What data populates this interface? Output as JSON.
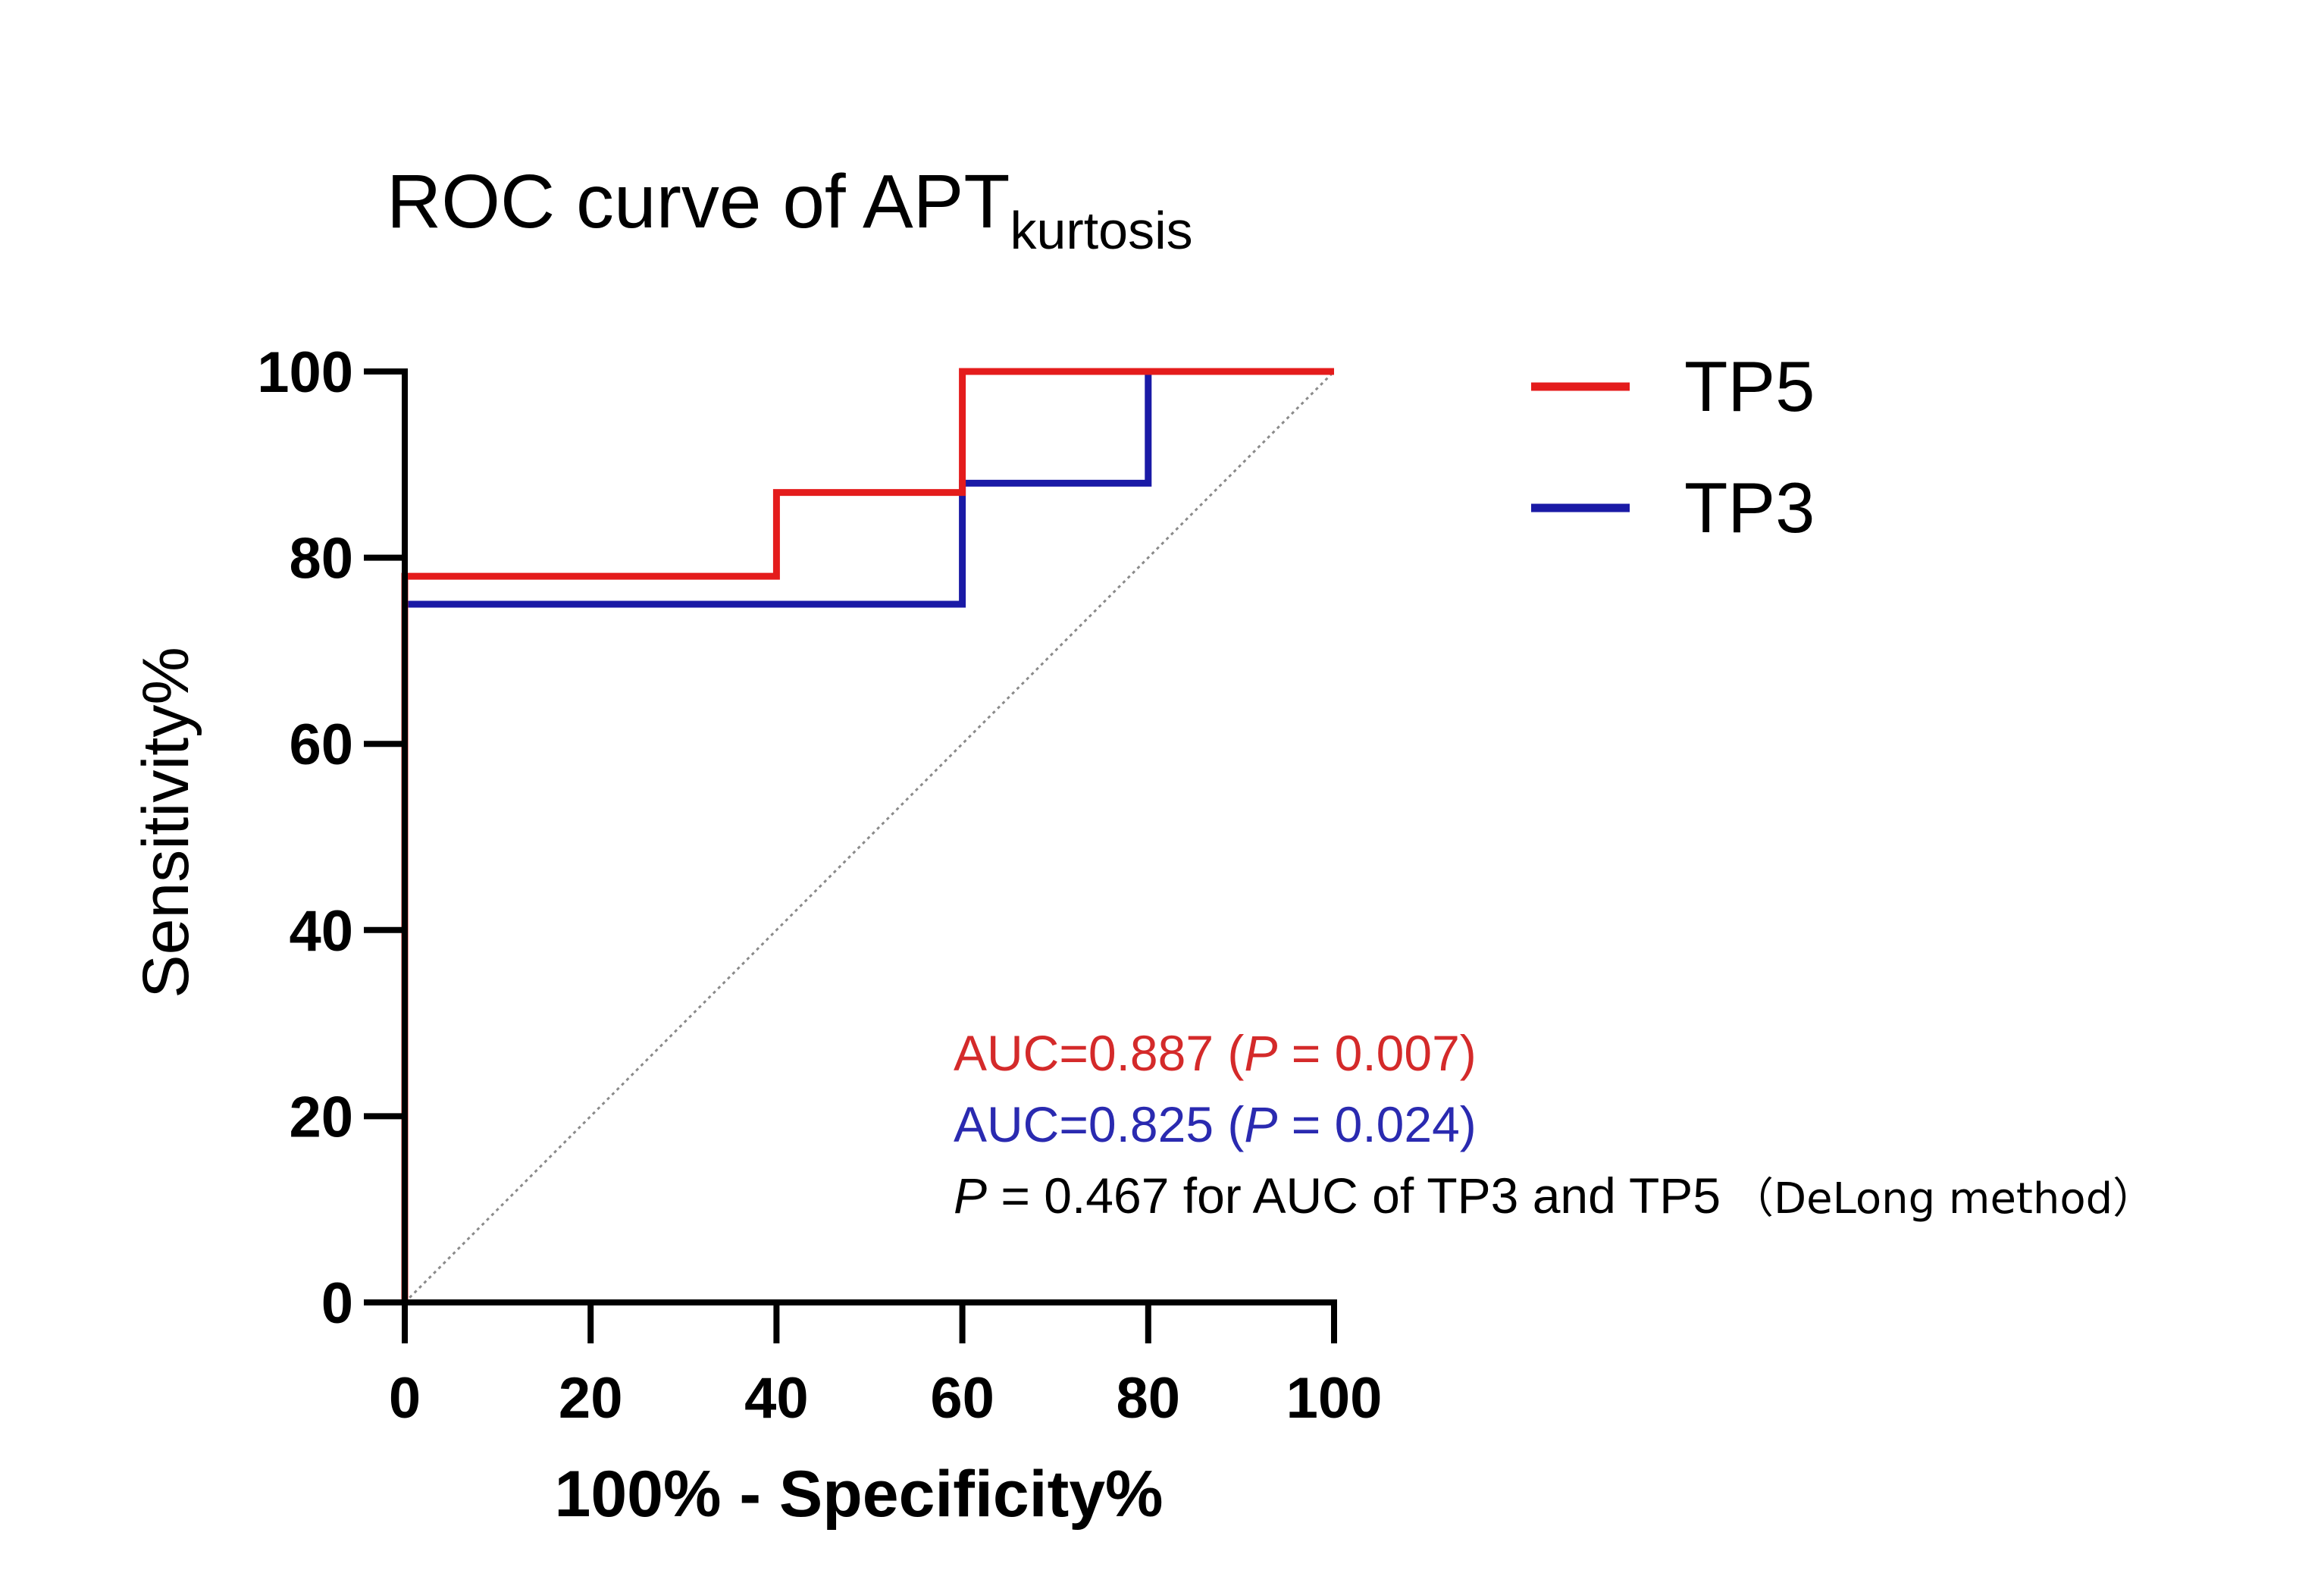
{
  "chart_data": {
    "type": "line",
    "title": {
      "main": "ROC curve of APT",
      "subscript": "kurtosis"
    },
    "xlabel": "100% - Specificity%",
    "ylabel": "Sensitivity%",
    "xlim": [
      0,
      100
    ],
    "ylim": [
      0,
      100
    ],
    "xticks": [
      0,
      20,
      40,
      60,
      80,
      100
    ],
    "yticks": [
      0,
      20,
      40,
      60,
      80,
      100
    ],
    "grid": false,
    "legend_position": "top-right",
    "series": [
      {
        "name": "TP5",
        "color": "#e41c1c",
        "step": true,
        "x": [
          0,
          0,
          40,
          40,
          60,
          60,
          100
        ],
        "y": [
          0,
          78,
          78,
          87,
          87,
          100,
          100
        ]
      },
      {
        "name": "TP3",
        "color": "#1a1aa6",
        "step": true,
        "x": [
          0,
          0,
          60,
          60,
          80,
          80,
          100
        ],
        "y": [
          0,
          75,
          75,
          88,
          88,
          100,
          100
        ]
      }
    ],
    "reference_line": {
      "x": [
        0,
        100
      ],
      "y": [
        0,
        100
      ],
      "color": "#8a8a8a",
      "style": "dotted"
    },
    "annotations": {
      "tp5": {
        "prefix": "AUC=0.887 (",
        "p_symbol": "P",
        "suffix": " = 0.007)",
        "color": "#d42a2a"
      },
      "tp3": {
        "prefix": "AUC=0.825 (",
        "p_symbol": "P",
        "suffix": " = 0.024)",
        "color": "#2a2ab0"
      },
      "comparison": {
        "p_symbol": "P",
        "text": " = 0.467 for AUC of TP3 and TP5",
        "method": "（DeLong method）",
        "color": "#000000"
      }
    }
  }
}
